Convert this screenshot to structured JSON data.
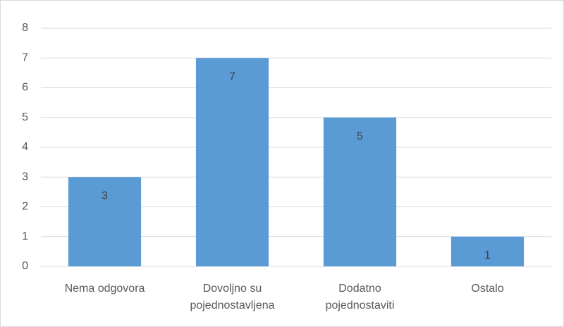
{
  "chart_data": {
    "type": "bar",
    "categories": [
      "Nema odgovora",
      "Dovoljno su pojednostavljena",
      "Dodatno pojednostaviti",
      "Ostalo"
    ],
    "values": [
      3,
      7,
      5,
      1
    ],
    "color": "#5b9bd5",
    "ylim": [
      0,
      8
    ],
    "yticks": [
      0,
      1,
      2,
      3,
      4,
      5,
      6,
      7,
      8
    ],
    "grid": true
  }
}
